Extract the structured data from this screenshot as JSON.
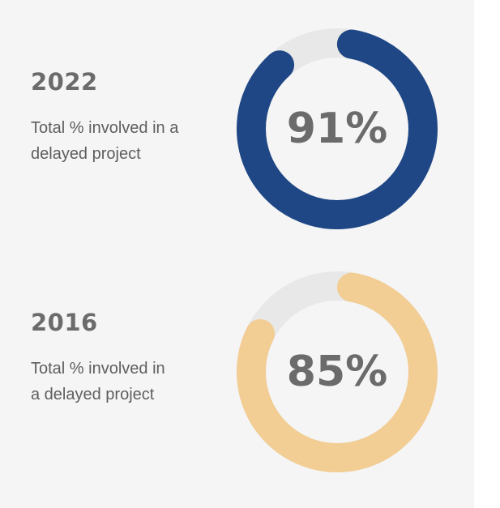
{
  "chart_data": [
    {
      "type": "pie",
      "title": "2022",
      "subtitle": "Total % involved in a delayed project",
      "desc_lines": [
        "Total % involved in a",
        "delayed project"
      ],
      "value": 91,
      "value_label": "91%",
      "color": "#1f4785",
      "track_color": "#e8e8e8"
    },
    {
      "type": "pie",
      "title": "2016",
      "subtitle": "Total % involved in a delayed project",
      "desc_lines": [
        "Total % involved in",
        "a delayed project"
      ],
      "value": 85,
      "value_label": "85%",
      "color": "#f2cd94",
      "track_color": "#e8e8e8"
    }
  ]
}
